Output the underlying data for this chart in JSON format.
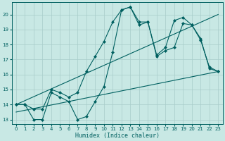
{
  "xlabel": "Humidex (Indice chaleur)",
  "xlim": [
    -0.5,
    23.5
  ],
  "ylim": [
    12.7,
    20.8
  ],
  "yticks": [
    13,
    14,
    15,
    16,
    17,
    18,
    19,
    20
  ],
  "xticks": [
    0,
    1,
    2,
    3,
    4,
    5,
    6,
    7,
    8,
    9,
    10,
    11,
    12,
    13,
    14,
    15,
    16,
    17,
    18,
    19,
    20,
    21,
    22,
    23
  ],
  "bg_color": "#c8e8e4",
  "grid_color": "#a8ccca",
  "line_color": "#006060",
  "line_width": 0.8,
  "marker": "D",
  "marker_size": 2.0,
  "lines": [
    {
      "x": [
        0,
        1,
        2,
        3,
        4,
        5,
        6,
        7,
        8,
        9,
        10,
        11,
        12,
        13,
        14,
        15,
        16,
        17,
        18,
        19,
        20,
        21,
        22,
        23
      ],
      "y": [
        14,
        14,
        13,
        13,
        14.8,
        14.5,
        14.2,
        13.0,
        13.2,
        14.2,
        15.2,
        17.5,
        20.3,
        20.5,
        19.3,
        19.5,
        17.2,
        17.6,
        17.8,
        19.4,
        19.3,
        18.3,
        16.5,
        16.2
      ],
      "markers": true
    },
    {
      "x": [
        0,
        1,
        2,
        3,
        4,
        5,
        6,
        7,
        8,
        9,
        10,
        11,
        12,
        13,
        14,
        15,
        16,
        17,
        18,
        19,
        20,
        21,
        22,
        23
      ],
      "y": [
        14,
        14,
        13.7,
        13.7,
        15.0,
        14.8,
        14.5,
        14.8,
        16.2,
        17.2,
        18.2,
        19.5,
        20.3,
        20.5,
        19.5,
        19.5,
        17.3,
        17.8,
        19.6,
        19.8,
        19.3,
        18.4,
        16.4,
        16.2
      ],
      "markers": true
    },
    {
      "x": [
        0,
        23
      ],
      "y": [
        14,
        20.0
      ],
      "markers": false
    },
    {
      "x": [
        0,
        23
      ],
      "y": [
        13.5,
        16.2
      ],
      "markers": false
    }
  ]
}
